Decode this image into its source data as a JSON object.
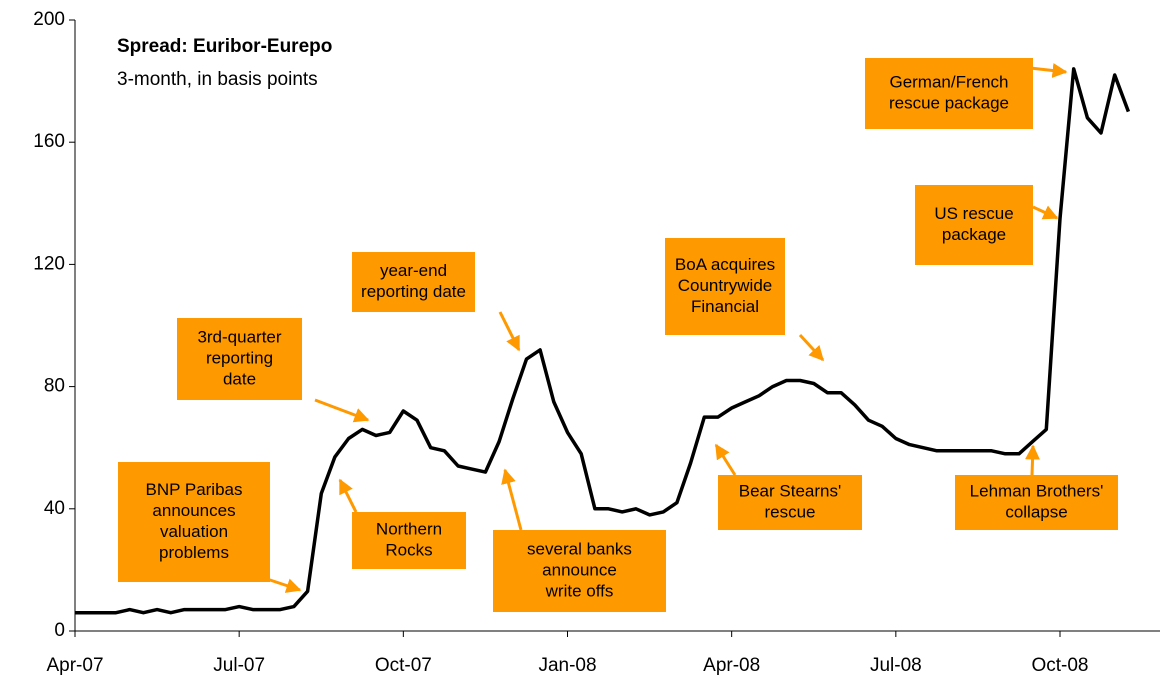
{
  "chart_data": {
    "type": "line",
    "title": "Spread: Euribor-Eurepo",
    "subtitle": "3-month, in basis points",
    "categories": [
      "Apr-07",
      null,
      null,
      null,
      null,
      null,
      null,
      null,
      null,
      null,
      null,
      null,
      "Jul-07",
      null,
      null,
      null,
      null,
      null,
      null,
      null,
      null,
      null,
      null,
      null,
      "Oct-07",
      null,
      null,
      null,
      null,
      null,
      null,
      null,
      null,
      null,
      null,
      null,
      "Jan-08",
      null,
      null,
      null,
      null,
      null,
      null,
      null,
      null,
      null,
      null,
      null,
      "Apr-08",
      null,
      null,
      null,
      null,
      null,
      null,
      null,
      null,
      null,
      null,
      null,
      "Jul-08",
      null,
      null,
      null,
      null,
      null,
      null,
      null,
      null,
      null,
      null,
      null,
      "Oct-08",
      null,
      null,
      null,
      null,
      null
    ],
    "values": [
      6,
      6,
      6,
      6,
      7,
      6,
      7,
      6,
      7,
      7,
      7,
      7,
      8,
      7,
      7,
      7,
      8,
      13,
      45,
      57,
      63,
      66,
      64,
      65,
      72,
      69,
      60,
      59,
      54,
      53,
      52,
      62,
      76,
      89,
      92,
      75,
      65,
      58,
      40,
      40,
      39,
      40,
      38,
      39,
      42,
      55,
      70,
      70,
      73,
      75,
      77,
      80,
      82,
      82,
      81,
      78,
      78,
      74,
      69,
      67,
      63,
      61,
      60,
      59,
      59,
      59,
      59,
      59,
      58,
      58,
      62,
      66,
      135,
      184,
      168,
      163,
      182,
      170
    ],
    "color": "#000000",
    "ylim": [
      0,
      200
    ],
    "yticks": [
      0,
      40,
      80,
      120,
      160,
      200
    ],
    "annotations": [
      {
        "lines": [
          "BNP Paribas",
          "announces",
          "valuation",
          "problems"
        ]
      },
      {
        "lines": [
          "Northern",
          "Rocks"
        ]
      },
      {
        "lines": [
          "3rd-quarter",
          "reporting",
          "date"
        ]
      },
      {
        "lines": [
          "year-end",
          "reporting date"
        ]
      },
      {
        "lines": [
          "several banks",
          "announce",
          "write offs"
        ]
      },
      {
        "lines": [
          "BoA acquires",
          "Countrywide",
          "Financial"
        ]
      },
      {
        "lines": [
          "Bear Stearns'",
          "rescue"
        ]
      },
      {
        "lines": [
          "Lehman Brothers'",
          "collapse"
        ]
      },
      {
        "lines": [
          "US rescue",
          "package"
        ]
      },
      {
        "lines": [
          "German/French",
          "rescue package"
        ]
      }
    ]
  }
}
